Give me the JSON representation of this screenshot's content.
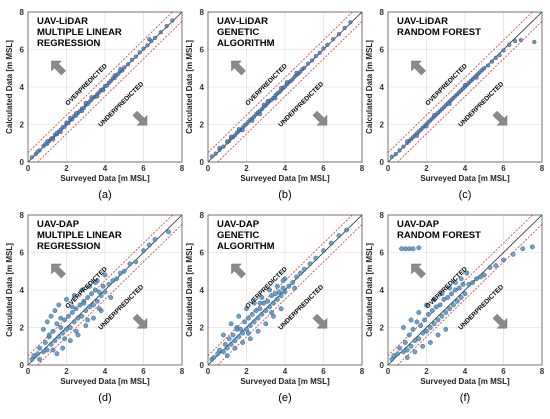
{
  "figure": {
    "panel_labels": [
      "(a)",
      "(b)",
      "(c)",
      "(d)",
      "(e)",
      "(f)"
    ]
  },
  "chart_data": [
    {
      "type": "scatter",
      "id": "a",
      "title_lines": [
        "UAV-LiDAR",
        "MULTIPLE LINEAR",
        "REGRESSION"
      ],
      "xlabel": "Surveyed Data [m MSL]",
      "ylabel": "Calculated Data [m MSL]",
      "xlim": [
        0,
        8
      ],
      "ylim": [
        0,
        8
      ],
      "xticks": [
        0,
        2,
        4,
        6,
        8
      ],
      "yticks": [
        0,
        2,
        4,
        6,
        8
      ],
      "grid": true,
      "annotations": [
        "OVERPREDICTED",
        "UNDERPREDICTED"
      ],
      "x": [
        0.2,
        0.4,
        0.6,
        0.8,
        1.0,
        1.1,
        1.2,
        1.3,
        1.4,
        1.5,
        1.6,
        1.7,
        1.8,
        1.9,
        2.0,
        2.1,
        2.2,
        2.3,
        2.4,
        2.5,
        2.6,
        2.7,
        2.8,
        2.9,
        3.0,
        3.1,
        3.2,
        3.3,
        3.4,
        3.5,
        3.6,
        3.7,
        3.8,
        3.9,
        4.0,
        4.1,
        4.2,
        4.3,
        4.4,
        4.5,
        4.6,
        4.7,
        4.8,
        4.9,
        5.0,
        5.2,
        5.4,
        5.6,
        5.8,
        6.0,
        6.2,
        6.4,
        6.6,
        6.9,
        7.2,
        7.5,
        1.0,
        1.5,
        2.2,
        2.8,
        3.3,
        3.9,
        4.5,
        1.3,
        2.5,
        3.6,
        4.8,
        0.5,
        0.9,
        1.7,
        2.0,
        3.0,
        6.3
      ],
      "y": [
        0.25,
        0.42,
        0.62,
        0.85,
        0.98,
        1.12,
        1.25,
        1.28,
        1.45,
        1.48,
        1.62,
        1.72,
        1.85,
        1.88,
        2.05,
        2.08,
        2.25,
        2.28,
        2.45,
        2.48,
        2.62,
        2.72,
        2.85,
        2.88,
        3.05,
        3.08,
        3.22,
        3.32,
        3.45,
        3.48,
        3.62,
        3.72,
        3.85,
        3.88,
        4.05,
        4.08,
        4.22,
        4.32,
        4.45,
        4.48,
        4.62,
        4.72,
        4.85,
        4.88,
        5.05,
        5.22,
        5.45,
        5.62,
        5.85,
        6.05,
        6.22,
        6.45,
        6.62,
        6.92,
        7.25,
        7.55,
        1.1,
        1.55,
        2.35,
        2.72,
        3.45,
        3.82,
        4.62,
        1.2,
        2.6,
        3.5,
        4.95,
        0.55,
        0.95,
        1.6,
        2.1,
        3.15,
        6.55
      ]
    },
    {
      "type": "scatter",
      "id": "b",
      "title_lines": [
        "UAV-LiDAR",
        "GENETIC",
        "ALGORITHM"
      ],
      "xlabel": "Surveyed Data [m MSL]",
      "ylabel": "Calculated Data [m MSL]",
      "xlim": [
        0,
        8
      ],
      "ylim": [
        0,
        8
      ],
      "xticks": [
        0,
        2,
        4,
        6,
        8
      ],
      "yticks": [
        0,
        2,
        4,
        6,
        8
      ],
      "grid": true,
      "annotations": [
        "OVERPREDICTED",
        "UNDERPREDICTED"
      ],
      "x": [
        0.2,
        0.4,
        0.6,
        0.8,
        1.0,
        1.1,
        1.2,
        1.3,
        1.4,
        1.5,
        1.6,
        1.7,
        1.8,
        1.9,
        2.0,
        2.1,
        2.2,
        2.3,
        2.4,
        2.5,
        2.6,
        2.7,
        2.8,
        2.9,
        3.0,
        3.1,
        3.2,
        3.3,
        3.4,
        3.5,
        3.6,
        3.7,
        3.8,
        3.9,
        4.0,
        4.1,
        4.2,
        4.3,
        4.4,
        4.5,
        4.6,
        4.7,
        4.8,
        4.9,
        5.0,
        5.2,
        5.4,
        5.6,
        5.8,
        6.0,
        6.2,
        6.5,
        6.8,
        7.1,
        7.4,
        1.0,
        1.6,
        2.3,
        2.9,
        3.5,
        4.1,
        4.6,
        1.2,
        2.7,
        3.8,
        0.6,
        1.8,
        3.1
      ],
      "y": [
        0.3,
        0.45,
        0.65,
        0.82,
        1.05,
        1.12,
        1.28,
        1.32,
        1.42,
        1.55,
        1.65,
        1.72,
        1.82,
        1.95,
        2.02,
        2.15,
        2.25,
        2.32,
        2.42,
        2.55,
        2.65,
        2.72,
        2.82,
        2.95,
        3.02,
        3.15,
        3.25,
        3.32,
        3.42,
        3.55,
        3.65,
        3.72,
        3.82,
        3.95,
        4.02,
        4.15,
        4.25,
        4.32,
        4.42,
        4.55,
        4.65,
        4.72,
        4.82,
        4.95,
        5.02,
        5.25,
        5.42,
        5.65,
        5.82,
        6.05,
        6.25,
        6.55,
        6.82,
        7.15,
        7.45,
        1.1,
        1.75,
        2.2,
        3.05,
        3.4,
        4.25,
        4.75,
        1.35,
        2.55,
        3.95,
        0.75,
        1.7,
        3.25
      ]
    },
    {
      "type": "scatter",
      "id": "c",
      "title_lines": [
        "UAV-LiDAR",
        "RANDOM FOREST"
      ],
      "xlabel": "Surveyed Data [m MSL]",
      "ylabel": "Calculated Data [m MSL]",
      "xlim": [
        0,
        8
      ],
      "ylim": [
        0,
        8
      ],
      "xticks": [
        0,
        2,
        4,
        6,
        8
      ],
      "yticks": [
        0,
        2,
        4,
        6,
        8
      ],
      "grid": true,
      "annotations": [
        "OVERPREDICTED",
        "UNDERPREDICTED"
      ],
      "x": [
        0.2,
        0.4,
        0.6,
        0.8,
        1.0,
        1.1,
        1.2,
        1.3,
        1.4,
        1.5,
        1.6,
        1.7,
        1.8,
        1.9,
        2.0,
        2.1,
        2.2,
        2.3,
        2.4,
        2.5,
        2.6,
        2.7,
        2.8,
        2.9,
        3.0,
        3.1,
        3.2,
        3.3,
        3.4,
        3.5,
        3.6,
        3.7,
        3.8,
        3.9,
        4.0,
        4.1,
        4.2,
        4.3,
        4.4,
        4.5,
        4.6,
        4.7,
        4.8,
        4.9,
        5.0,
        5.2,
        5.4,
        5.6,
        5.8,
        6.0,
        6.3,
        6.6,
        6.9,
        7.6,
        1.0,
        1.5,
        2.4,
        3.2,
        4.0,
        4.6,
        2.0
      ],
      "y": [
        0.28,
        0.42,
        0.62,
        0.82,
        1.02,
        1.12,
        1.22,
        1.32,
        1.42,
        1.52,
        1.62,
        1.72,
        1.82,
        1.92,
        2.02,
        2.12,
        2.22,
        2.32,
        2.42,
        2.52,
        2.62,
        2.72,
        2.82,
        2.92,
        3.02,
        3.12,
        3.22,
        3.32,
        3.42,
        3.52,
        3.62,
        3.72,
        3.82,
        3.92,
        4.02,
        4.12,
        4.22,
        4.32,
        4.42,
        4.52,
        4.62,
        4.72,
        4.82,
        4.92,
        5.0,
        5.15,
        5.35,
        5.55,
        5.7,
        5.95,
        6.25,
        6.45,
        6.5,
        6.4,
        1.1,
        1.4,
        2.5,
        3.1,
        4.1,
        4.5,
        1.9
      ]
    },
    {
      "type": "scatter",
      "id": "d",
      "title_lines": [
        "UAV-DAP",
        "MULTIPLE LINEAR",
        "REGRESSION"
      ],
      "xlabel": "Surveyed Data [m MSL]",
      "ylabel": "Calculated Data [m MSL]",
      "xlim": [
        0,
        8
      ],
      "ylim": [
        0,
        8
      ],
      "xticks": [
        0,
        2,
        4,
        6,
        8
      ],
      "yticks": [
        0,
        2,
        4,
        6,
        8
      ],
      "grid": true,
      "annotations": [
        "OVERPREDICTED",
        "UNDERPREDICTED"
      ],
      "x": [
        0.2,
        0.3,
        0.5,
        0.6,
        0.8,
        0.9,
        1.0,
        1.1,
        1.2,
        1.3,
        1.4,
        1.5,
        1.6,
        1.7,
        1.8,
        1.9,
        2.0,
        2.1,
        2.2,
        2.3,
        2.4,
        2.5,
        2.6,
        2.7,
        2.8,
        2.9,
        3.0,
        3.1,
        3.2,
        3.3,
        3.4,
        3.5,
        3.6,
        3.7,
        3.8,
        3.9,
        4.0,
        4.2,
        4.4,
        4.6,
        4.8,
        5.0,
        5.3,
        5.6,
        6.0,
        6.3,
        6.6,
        7.3,
        0.8,
        1.0,
        1.2,
        1.4,
        1.5,
        1.6,
        1.8,
        2.0,
        2.2,
        2.4,
        2.6,
        2.8,
        3.0,
        3.2,
        3.4,
        3.6,
        3.8,
        4.0,
        0.6,
        1.3,
        1.9,
        2.5,
        3.1,
        3.7,
        4.3,
        1.1,
        1.7,
        2.3,
        2.9,
        3.5
      ],
      "y": [
        0.3,
        0.5,
        0.6,
        0.9,
        0.7,
        1.2,
        0.8,
        1.5,
        1.1,
        1.8,
        1.3,
        2.2,
        1.5,
        2.0,
        1.7,
        2.4,
        1.9,
        2.6,
        2.0,
        2.8,
        2.3,
        3.0,
        2.5,
        3.2,
        2.6,
        3.4,
        2.9,
        3.6,
        3.1,
        3.8,
        3.2,
        4.0,
        3.4,
        3.9,
        3.7,
        4.2,
        3.9,
        4.3,
        4.5,
        4.6,
        4.9,
        5.0,
        5.4,
        5.5,
        6.1,
        6.4,
        6.7,
        7.1,
        1.9,
        2.3,
        2.6,
        2.9,
        0.6,
        3.2,
        0.9,
        3.5,
        1.3,
        3.7,
        1.6,
        4.0,
        2.1,
        4.2,
        2.5,
        4.5,
        2.9,
        4.8,
        0.3,
        0.8,
        1.4,
        1.8,
        2.4,
        3.0,
        3.6,
        1.6,
        2.5,
        3.1,
        3.3,
        4.4
      ]
    },
    {
      "type": "scatter",
      "id": "e",
      "title_lines": [
        "UAV-DAP",
        "GENETIC",
        "ALGORITHM"
      ],
      "xlabel": "Surveyed Data [m MSL]",
      "ylabel": "Calculated Data [m MSL]",
      "xlim": [
        0,
        8
      ],
      "ylim": [
        0,
        8
      ],
      "xticks": [
        0,
        2,
        4,
        6,
        8
      ],
      "yticks": [
        0,
        2,
        4,
        6,
        8
      ],
      "grid": true,
      "annotations": [
        "OVERPREDICTED",
        "UNDERPREDICTED"
      ],
      "x": [
        0.2,
        0.3,
        0.5,
        0.6,
        0.8,
        0.9,
        1.0,
        1.1,
        1.2,
        1.3,
        1.4,
        1.5,
        1.6,
        1.7,
        1.8,
        1.9,
        2.0,
        2.1,
        2.2,
        2.3,
        2.4,
        2.5,
        2.6,
        2.7,
        2.8,
        2.9,
        3.0,
        3.1,
        3.2,
        3.3,
        3.4,
        3.5,
        3.6,
        3.7,
        3.8,
        3.9,
        4.0,
        4.2,
        4.4,
        4.6,
        4.8,
        5.0,
        5.3,
        5.6,
        6.0,
        6.4,
        6.8,
        7.2,
        0.8,
        1.0,
        1.2,
        1.4,
        1.6,
        1.8,
        2.0,
        2.2,
        2.4,
        2.6,
        2.8,
        3.0,
        3.2,
        3.4,
        3.6,
        3.8,
        4.0,
        1.5,
        2.1,
        2.7,
        3.3,
        3.9,
        4.5
      ],
      "y": [
        0.3,
        0.4,
        0.6,
        0.8,
        0.7,
        1.1,
        0.9,
        1.4,
        1.1,
        1.6,
        1.3,
        2.0,
        1.5,
        1.9,
        1.7,
        2.3,
        1.9,
        2.5,
        2.1,
        2.7,
        2.3,
        2.9,
        2.5,
        3.0,
        2.7,
        3.3,
        2.9,
        3.4,
        3.1,
        3.7,
        3.3,
        3.8,
        3.5,
        3.9,
        3.7,
        4.1,
        3.9,
        4.2,
        4.4,
        4.7,
        4.9,
        5.1,
        5.4,
        5.7,
        6.1,
        6.5,
        6.9,
        7.2,
        1.6,
        0.5,
        2.2,
        0.9,
        2.6,
        1.2,
        3.0,
        1.4,
        3.3,
        1.8,
        3.6,
        2.2,
        4.0,
        2.6,
        4.2,
        3.0,
        4.6,
        1.9,
        1.7,
        3.3,
        2.8,
        4.5,
        4.1
      ]
    },
    {
      "type": "scatter",
      "id": "f",
      "title_lines": [
        "UAV-DAP",
        "RANDOM FOREST"
      ],
      "xlabel": "Surveyed Data [m MSL]",
      "ylabel": "Calculated Data [m MSL]",
      "xlim": [
        0,
        8
      ],
      "ylim": [
        0,
        8
      ],
      "xticks": [
        0,
        2,
        4,
        6,
        8
      ],
      "yticks": [
        0,
        2,
        4,
        6,
        8
      ],
      "grid": true,
      "annotations": [
        "OVERPREDICTED",
        "UNDERPREDICTED"
      ],
      "x": [
        0.2,
        0.3,
        0.5,
        0.6,
        0.8,
        0.9,
        1.0,
        1.1,
        1.2,
        1.3,
        1.4,
        1.5,
        1.6,
        1.7,
        1.8,
        1.9,
        2.0,
        2.1,
        2.2,
        2.3,
        2.4,
        2.5,
        2.6,
        2.7,
        2.8,
        2.9,
        3.0,
        3.1,
        3.2,
        3.3,
        3.4,
        3.5,
        3.6,
        3.7,
        3.8,
        3.9,
        4.0,
        4.2,
        4.4,
        4.6,
        4.8,
        5.0,
        5.3,
        5.6,
        6.0,
        6.5,
        7.0,
        7.5,
        0.8,
        1.0,
        1.2,
        1.4,
        1.6,
        1.8,
        2.0,
        2.2,
        2.4,
        2.6,
        2.8,
        3.0,
        3.2,
        3.5,
        3.8,
        4.1,
        0.7,
        0.9,
        1.1,
        1.3,
        1.6
      ],
      "y": [
        0.3,
        0.5,
        0.6,
        0.9,
        0.7,
        1.2,
        0.8,
        1.6,
        1.0,
        1.9,
        1.3,
        2.3,
        1.4,
        2.1,
        1.7,
        2.4,
        1.8,
        2.7,
        2.0,
        2.9,
        2.2,
        3.1,
        2.4,
        3.2,
        2.6,
        3.5,
        2.8,
        3.6,
        3.0,
        3.8,
        3.2,
        4.0,
        3.4,
        4.1,
        3.6,
        4.3,
        3.8,
        4.3,
        4.4,
        4.6,
        4.7,
        4.8,
        5.2,
        5.3,
        5.6,
        5.9,
        6.2,
        6.3,
        2.0,
        0.4,
        2.4,
        0.7,
        2.8,
        1.0,
        3.2,
        1.2,
        3.5,
        1.6,
        3.8,
        1.9,
        4.1,
        4.4,
        4.6,
        4.9,
        6.2,
        6.2,
        6.2,
        6.2,
        6.25
      ]
    }
  ]
}
